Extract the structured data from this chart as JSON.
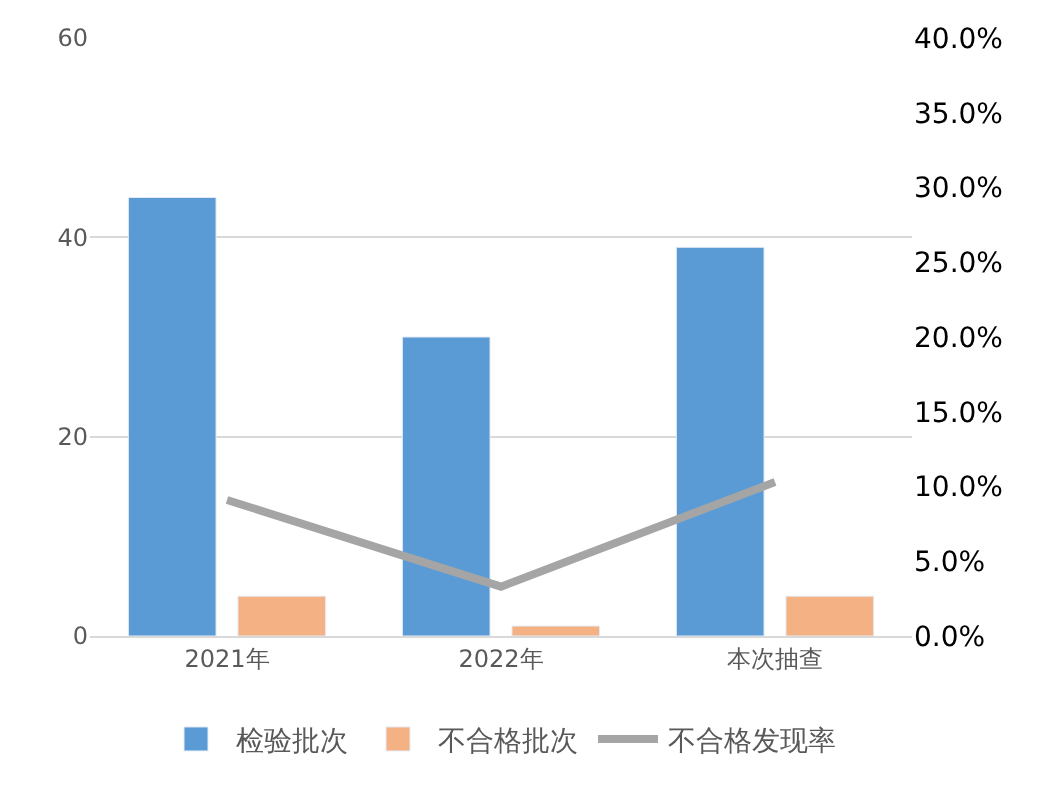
{
  "chart_data": {
    "type": "bar",
    "categories": [
      "2021年",
      "2022年",
      "本次抽查"
    ],
    "series": [
      {
        "name": "检验批次",
        "color": "#5b9bd5",
        "values": [
          44,
          30,
          39
        ]
      },
      {
        "name": "不合格批次",
        "color": "#f4b183",
        "values": [
          4,
          1,
          4
        ]
      },
      {
        "name": "不合格发现率",
        "type": "line",
        "axis": "y2",
        "color": "#a5a5a5",
        "values": [
          9.1,
          3.3,
          10.3
        ],
        "marker": "none",
        "line_style": "solid"
      }
    ],
    "ylim": [
      0,
      60
    ],
    "yticks": [
      0,
      20,
      40,
      60
    ],
    "y2lim": [
      0,
      40
    ],
    "y2ticks": [
      {
        "value": 0,
        "label": "0.0%"
      },
      {
        "value": 5,
        "label": "5.0%"
      },
      {
        "value": 10,
        "label": "10.0%"
      },
      {
        "value": 15,
        "label": "15.0%"
      },
      {
        "value": 20,
        "label": "20.0%"
      },
      {
        "value": 25,
        "label": "25.0%"
      },
      {
        "value": 30,
        "label": "30.0%"
      },
      {
        "value": 35,
        "label": "35.0%"
      },
      {
        "value": 40,
        "label": "40.0%"
      }
    ],
    "grid": "y",
    "legend": "bottom"
  }
}
